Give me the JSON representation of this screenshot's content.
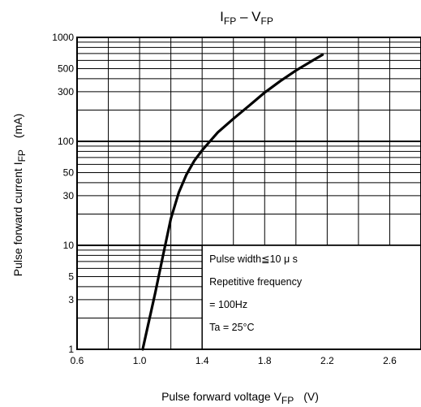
{
  "chart_data": {
    "type": "line",
    "title": {
      "main": "I",
      "main_sub": "FP",
      "dash": " – V",
      "dash_sub": "FP"
    },
    "xlabel": {
      "text": "Pulse forward voltage  V",
      "sub": "FP",
      "unit": "(V)"
    },
    "ylabel": {
      "text": "Pulse forward current  I",
      "sub": "FP",
      "unit": "(mA)"
    },
    "xlim": [
      0.6,
      2.8
    ],
    "ylim": [
      1,
      1000
    ],
    "yscale": "log",
    "grid": true,
    "xticks": [
      0.6,
      1.0,
      1.4,
      1.8,
      2.2,
      2.6
    ],
    "xtick_labels": [
      "0.6",
      "1.0",
      "1.4",
      "1.8",
      "2.2",
      "2.6"
    ],
    "yticks": [
      1,
      3,
      5,
      10,
      30,
      50,
      100,
      300,
      500,
      1000
    ],
    "ytick_labels": [
      "1",
      "3",
      "5",
      "10",
      "30",
      "50",
      "100",
      "300",
      "500",
      "1000"
    ],
    "series": [
      {
        "x": [
          1.02,
          1.05,
          1.1,
          1.15,
          1.2,
          1.25,
          1.3,
          1.35,
          1.4,
          1.45,
          1.5,
          1.6,
          1.7,
          1.8,
          1.9,
          2.0,
          2.1,
          2.17
        ],
        "y": [
          1,
          1.6,
          3.5,
          8,
          18,
          32,
          48,
          65,
          82,
          100,
          122,
          165,
          220,
          295,
          380,
          480,
          590,
          680
        ]
      }
    ],
    "annotation": {
      "lines": [
        "Pulse width≦10 μ s",
        "Repetitive frequency",
        "= 100Hz",
        "Ta = 25°C"
      ]
    },
    "line_color": "#000000",
    "grid_color": "#000000"
  }
}
